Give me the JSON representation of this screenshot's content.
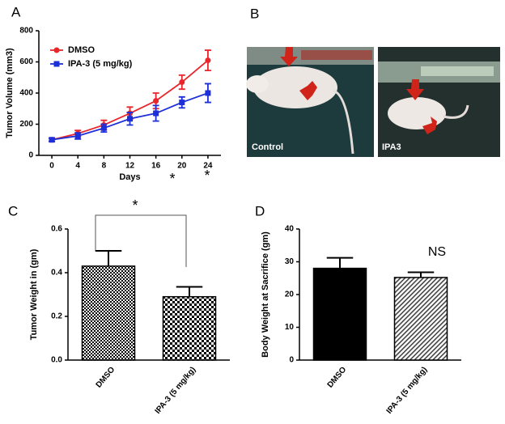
{
  "chart_data": [
    {
      "type": "line",
      "panel": "A",
      "y_label": "Tumor Volume (mm3)",
      "x_label": "Days",
      "x": [
        0,
        4,
        8,
        12,
        16,
        20,
        24
      ],
      "series": [
        {
          "name": "DMSO",
          "color": "#e8262b",
          "marker": "circle",
          "values": [
            100,
            140,
            195,
            270,
            350,
            470,
            610
          ],
          "errors": [
            10,
            20,
            30,
            40,
            50,
            45,
            65
          ]
        },
        {
          "name": "IPA-3 (5 mg/kg)",
          "color": "#1c2fd8",
          "marker": "square",
          "values": [
            100,
            125,
            175,
            235,
            270,
            340,
            400
          ],
          "errors": [
            10,
            20,
            25,
            40,
            50,
            35,
            60
          ]
        }
      ],
      "xlim": [
        -2,
        26
      ],
      "xticks": [
        0,
        4,
        8,
        12,
        16,
        20,
        24
      ],
      "ylim": [
        0,
        800
      ],
      "yticks": [
        0,
        200,
        400,
        600,
        800
      ],
      "annotations": [
        "*",
        "*"
      ]
    },
    {
      "type": "bar",
      "panel": "C",
      "y_label": "Tumor Weight in (gm)",
      "categories": [
        "DMSO",
        "IPA-3 (5 mg/kg)"
      ],
      "values": [
        0.43,
        0.29
      ],
      "errors": [
        0.07,
        0.045
      ],
      "color": "#000000",
      "ylim": [
        0,
        0.6
      ],
      "yticks": [
        {
          "value": 0,
          "label": "0.0"
        },
        0.2,
        0.4,
        0.6
      ],
      "annotations": [
        "*"
      ]
    },
    {
      "type": "bar",
      "panel": "D",
      "y_label": "Body Weight at Sacrifice (gm)",
      "categories": [
        "DMSO",
        "IPA-3 (5 mg/kg)"
      ],
      "values": [
        28,
        25.2
      ],
      "errors": [
        3.2,
        1.6
      ],
      "color": "#000000",
      "ylim": [
        0,
        40
      ],
      "yticks": [
        0,
        10,
        20,
        30,
        40
      ],
      "annotations": [
        "NS"
      ]
    }
  ],
  "panel_b": {
    "panel": "B",
    "images": [
      {
        "label": "Control"
      },
      {
        "label": "IPA3"
      }
    ]
  }
}
